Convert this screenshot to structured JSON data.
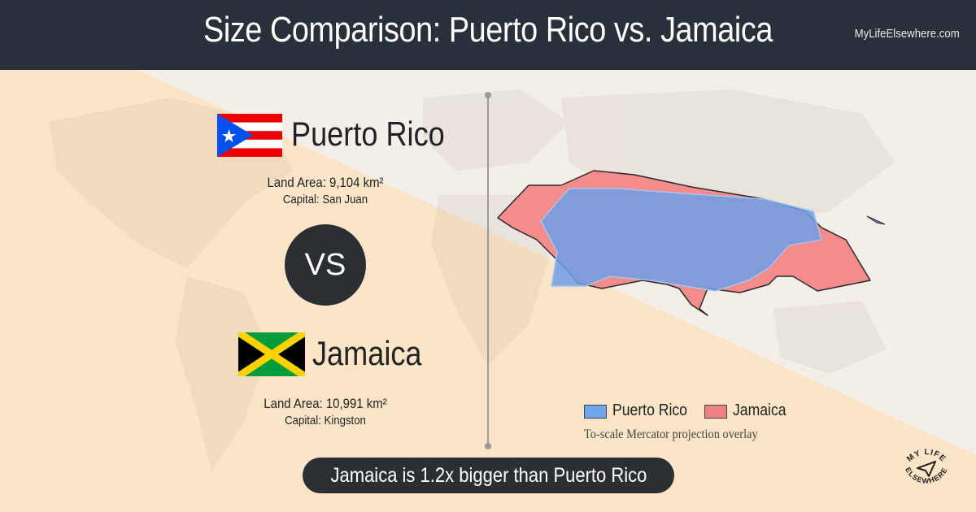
{
  "header": {
    "title": "Size Comparison: Puerto Rico vs. Jamaica",
    "site": "MyLifeElsewhere.com"
  },
  "countries": [
    {
      "name": "Puerto Rico",
      "land_area_label": "Land Area:",
      "land_area_value": "9,104 km²",
      "capital_label": "Capital:",
      "capital_value": "San Juan",
      "flag": "puerto-rico-flag",
      "color": "#6699e6"
    },
    {
      "name": "Jamaica",
      "land_area_label": "Land Area:",
      "land_area_value": "10,991 km²",
      "capital_label": "Capital:",
      "capital_value": "Kingston",
      "flag": "jamaica-flag",
      "color": "#f07878"
    }
  ],
  "vs_label": "VS",
  "legend": {
    "items": [
      {
        "label": "Puerto Rico",
        "color": "#6fa6e8"
      },
      {
        "label": "Jamaica",
        "color": "#f28282"
      }
    ],
    "note": "To-scale Mercator projection overlay"
  },
  "verdict": "Jamaica is 1.2x bigger than Puerto Rico",
  "logo": {
    "line1": "MY LIFE",
    "line2": "ELSEWHERE"
  },
  "colors": {
    "header_bg": "#28313a",
    "pill_bg": "#2b2f34",
    "background_light": "#f6eee4",
    "background_peach": "#fbe6cc"
  }
}
